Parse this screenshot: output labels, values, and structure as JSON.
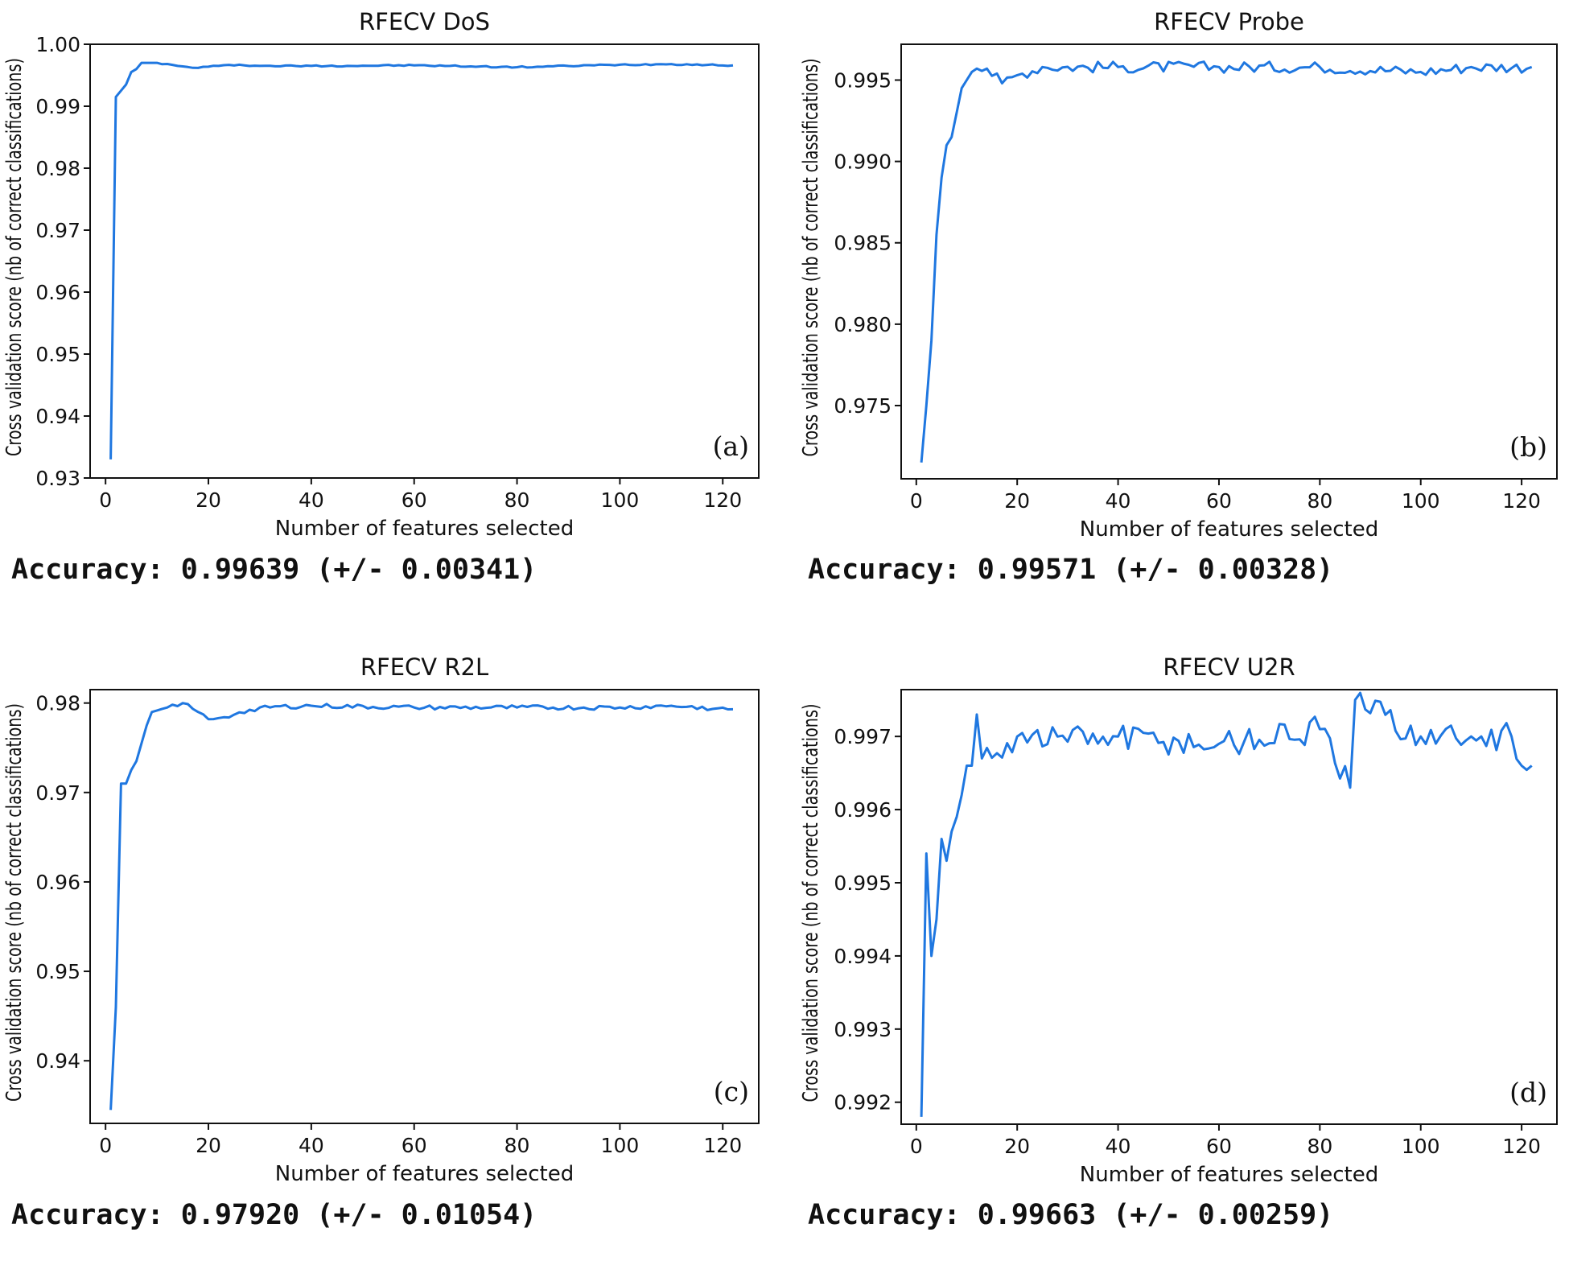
{
  "chart_data": [
    {
      "type": "line",
      "title": "RFECV DoS",
      "xlabel": "Number of features selected",
      "ylabel": "Cross validation score (nb of correct classifications)",
      "xlim": [
        -3,
        127
      ],
      "ylim": [
        0.93,
        1.0
      ],
      "xticks": [
        "0",
        "20",
        "40",
        "60",
        "80",
        "100",
        "120"
      ],
      "yticks": [
        "0.93",
        "0.94",
        "0.95",
        "0.96",
        "0.97",
        "0.98",
        "0.99",
        "1.00"
      ],
      "panel_label": "(a)",
      "accuracy": "Accuracy: 0.99639 (+/- 0.00341)",
      "line_color": "#1f77e0",
      "series": [
        {
          "name": "score",
          "anchors": [
            [
              1,
              0.933
            ],
            [
              2,
              0.9915
            ],
            [
              3,
              0.9925
            ],
            [
              4,
              0.9935
            ],
            [
              5,
              0.9955
            ],
            [
              6,
              0.996
            ],
            [
              7,
              0.997
            ],
            [
              10,
              0.997
            ],
            [
              14,
              0.9965
            ],
            [
              17,
              0.9962
            ],
            [
              22,
              0.9965
            ],
            [
              26,
              0.9967
            ],
            [
              30,
              0.9965
            ],
            [
              40,
              0.9965
            ],
            [
              60,
              0.9966
            ],
            [
              80,
              0.9963
            ],
            [
              100,
              0.9967
            ],
            [
              110,
              0.9968
            ],
            [
              122,
              0.9966
            ]
          ],
          "noise": 0.00012
        }
      ]
    },
    {
      "type": "line",
      "title": "RFECV Probe",
      "xlabel": "Number of features selected",
      "ylabel": "Cross validation score (nb of correct classifications)",
      "xlim": [
        -3,
        127
      ],
      "ylim": [
        0.9705,
        0.9972
      ],
      "xticks": [
        "0",
        "20",
        "40",
        "60",
        "80",
        "100",
        "120"
      ],
      "yticks": [
        "0.975",
        "0.980",
        "0.985",
        "0.990",
        "0.995"
      ],
      "panel_label": "(b)",
      "accuracy": "Accuracy: 0.99571 (+/- 0.00328)",
      "line_color": "#1f77e0",
      "series": [
        {
          "name": "score",
          "anchors": [
            [
              1,
              0.9715
            ],
            [
              2,
              0.975
            ],
            [
              3,
              0.979
            ],
            [
              4,
              0.9855
            ],
            [
              5,
              0.989
            ],
            [
              6,
              0.991
            ],
            [
              7,
              0.9915
            ],
            [
              8,
              0.993
            ],
            [
              9,
              0.9945
            ],
            [
              10,
              0.995
            ],
            [
              11,
              0.9955
            ],
            [
              12,
              0.9957
            ],
            [
              14,
              0.9957
            ],
            [
              17,
              0.9948
            ],
            [
              20,
              0.9953
            ],
            [
              25,
              0.9958
            ],
            [
              40,
              0.9958
            ],
            [
              60,
              0.9958
            ],
            [
              80,
              0.9958
            ],
            [
              100,
              0.9955
            ],
            [
              110,
              0.9958
            ],
            [
              122,
              0.9958
            ]
          ],
          "noise": 0.00035
        }
      ]
    },
    {
      "type": "line",
      "title": "RFECV R2L",
      "xlabel": "Number of features selected",
      "ylabel": "Cross validation score (nb of correct classifications)",
      "xlim": [
        -3,
        127
      ],
      "ylim": [
        0.933,
        0.9815
      ],
      "xticks": [
        "0",
        "20",
        "40",
        "60",
        "80",
        "100",
        "120"
      ],
      "yticks": [
        "0.94",
        "0.95",
        "0.96",
        "0.97",
        "0.98"
      ],
      "panel_label": "(c)",
      "accuracy": "Accuracy: 0.97920 (+/- 0.01054)",
      "line_color": "#1f77e0",
      "series": [
        {
          "name": "score",
          "anchors": [
            [
              1,
              0.9345
            ],
            [
              2,
              0.946
            ],
            [
              3,
              0.971
            ],
            [
              4,
              0.971
            ],
            [
              5,
              0.9725
            ],
            [
              6,
              0.9735
            ],
            [
              7,
              0.9755
            ],
            [
              8,
              0.9775
            ],
            [
              9,
              0.979
            ],
            [
              12,
              0.9795
            ],
            [
              15,
              0.98
            ],
            [
              18,
              0.979
            ],
            [
              20,
              0.9782
            ],
            [
              25,
              0.9787
            ],
            [
              30,
              0.9795
            ],
            [
              40,
              0.9797
            ],
            [
              60,
              0.9795
            ],
            [
              80,
              0.9795
            ],
            [
              100,
              0.9795
            ],
            [
              110,
              0.9797
            ],
            [
              122,
              0.9793
            ]
          ],
          "noise": 0.00025
        }
      ]
    },
    {
      "type": "line",
      "title": "RFECV U2R",
      "xlabel": "Number of features selected",
      "ylabel": "Cross validation score (nb of correct classifications)",
      "xlim": [
        -3,
        127
      ],
      "ylim": [
        0.9917,
        0.99764
      ],
      "xticks": [
        "0",
        "20",
        "40",
        "60",
        "80",
        "100",
        "120"
      ],
      "yticks": [
        "0.992",
        "0.993",
        "0.994",
        "0.995",
        "0.996",
        "0.997"
      ],
      "panel_label": "(d)",
      "accuracy": "Accuracy: 0.99663 (+/- 0.00259)",
      "line_color": "#1f77e0",
      "series": [
        {
          "name": "score",
          "anchors": [
            [
              1,
              0.9918
            ],
            [
              2,
              0.9954
            ],
            [
              3,
              0.994
            ],
            [
              4,
              0.9945
            ],
            [
              5,
              0.9956
            ],
            [
              6,
              0.9953
            ],
            [
              7,
              0.9957
            ],
            [
              8,
              0.9959
            ],
            [
              9,
              0.9962
            ],
            [
              10,
              0.9966
            ],
            [
              11,
              0.9966
            ],
            [
              12,
              0.9973
            ],
            [
              13,
              0.9967
            ],
            [
              20,
              0.997
            ],
            [
              40,
              0.997
            ],
            [
              60,
              0.9969
            ],
            [
              80,
              0.9971
            ],
            [
              86,
              0.9963
            ],
            [
              87,
              0.9975
            ],
            [
              100,
              0.997
            ],
            [
              110,
              0.997
            ],
            [
              118,
              0.997
            ],
            [
              120,
              0.9966
            ],
            [
              122,
              0.9966
            ]
          ],
          "noise": 0.0002
        }
      ]
    }
  ]
}
